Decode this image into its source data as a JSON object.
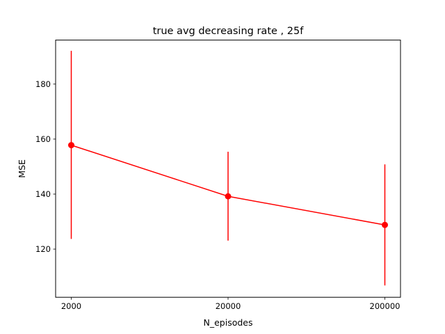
{
  "chart_data": {
    "type": "line",
    "title": "true avg decreasing rate , 25f",
    "xlabel": "N_episodes",
    "ylabel": "MSE",
    "x_scale": "log",
    "categories": [
      "2000",
      "20000",
      "200000"
    ],
    "x": [
      2000,
      20000,
      200000
    ],
    "ylim": [
      102.5,
      196
    ],
    "yticks": [
      120,
      140,
      160,
      180
    ],
    "grid": false,
    "series": [
      {
        "color": "#ff0000",
        "marker": "circle",
        "values": [
          157.8,
          139.2,
          128.8
        ],
        "error_low": [
          123.7,
          123.1,
          106.8
        ],
        "error_high": [
          192.1,
          155.4,
          150.8
        ]
      }
    ]
  }
}
